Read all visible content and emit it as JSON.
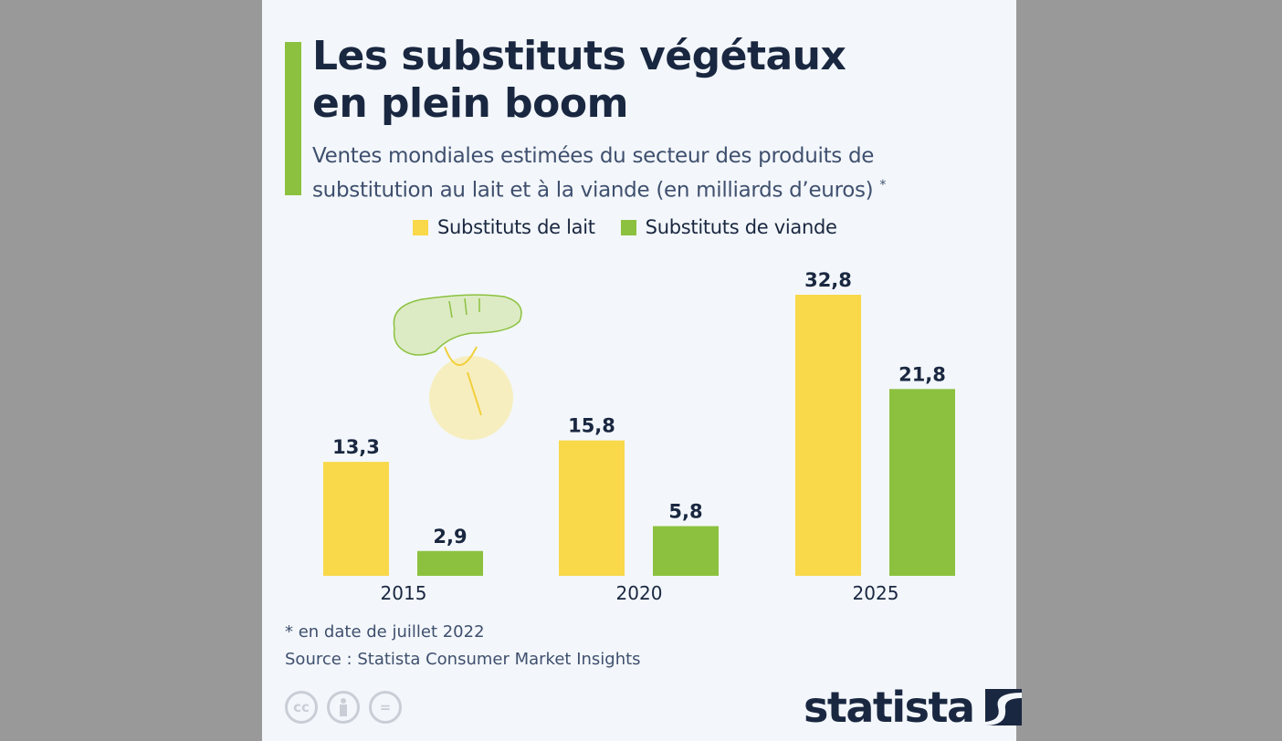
{
  "header": {
    "title": "Les substituts végétaux\nen plein boom",
    "subtitle": "Ventes mondiales estimées du secteur des produits de substitution au lait et à la viande (en milliards d’euros)",
    "subtitle_marker": "*"
  },
  "chart_data": {
    "type": "bar",
    "title": "Les substituts végétaux en plein boom",
    "categories": [
      "2015",
      "2020",
      "2025"
    ],
    "series": [
      {
        "name": "Substituts de lait",
        "color": "#f9d84a",
        "values": [
          13.3,
          15.8,
          32.8
        ],
        "labels": [
          "13,3",
          "15,8",
          "32,8"
        ]
      },
      {
        "name": "Substituts de viande",
        "color": "#8cc13f",
        "values": [
          2.9,
          5.8,
          21.8
        ],
        "labels": [
          "2,9",
          "5,8",
          "21,8"
        ]
      }
    ],
    "ylim": [
      0,
      32.8
    ],
    "grid": false,
    "legend": "top-center"
  },
  "footer": {
    "note": "* en date de juillet 2022",
    "source": "Source : Statista Consumer Market Insights",
    "license_icons": [
      "cc-icon",
      "attribution-icon",
      "no-derivatives-icon"
    ],
    "brand": "statista"
  }
}
